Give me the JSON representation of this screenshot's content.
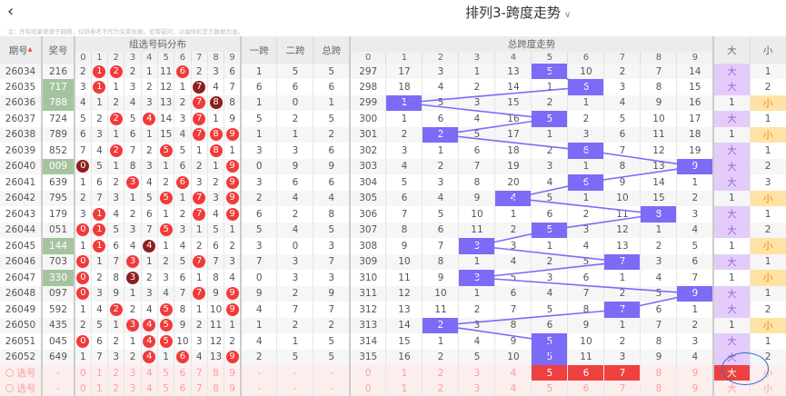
{
  "header": {
    "back_icon": "chevron-left-icon",
    "title": "排列3-跨度走势",
    "dropdown_icon": "chevron-down-icon"
  },
  "note": "注：开奖结果来源于网络，仅供参考不作为兑奖依据。如有疑问，以福体彩官方数据为准。",
  "columns": {
    "issue": "期号",
    "sort_icon": "sort-icon",
    "number": "奖号",
    "distribution": "组选号码分布",
    "span1": "一跨",
    "span2": "二跨",
    "span_total": "总跨",
    "trend": "总跨度走势",
    "digits": [
      "0",
      "1",
      "2",
      "3",
      "4",
      "5",
      "6",
      "7",
      "8",
      "9"
    ],
    "big": "大",
    "small": "小"
  },
  "colors": {
    "hit": "#f23a3a",
    "hit_repeat": "#8e1f1f",
    "span_marker": "#7b6bf7",
    "pair_number": "#a6c3a0",
    "big": "#e3ccf9",
    "small": "#ffe3a6",
    "selected": "#ef4040"
  },
  "rows": [
    {
      "issue": "26034",
      "number": "216",
      "pair": false,
      "dist": [
        2,
        1,
        2,
        2,
        1,
        11,
        6,
        2,
        3,
        6
      ],
      "s1": 1,
      "s2": 5,
      "st": 5,
      "trend": [
        297,
        17,
        3,
        1,
        13,
        5,
        10,
        2,
        7,
        14
      ],
      "big": "大",
      "small": "1"
    },
    {
      "issue": "26035",
      "number": "717",
      "pair": true,
      "dist": [
        3,
        1,
        1,
        3,
        2,
        12,
        1,
        7,
        4,
        7
      ],
      "s1": 6,
      "s2": 6,
      "st": 6,
      "trend": [
        298,
        18,
        4,
        2,
        14,
        1,
        6,
        3,
        8,
        15
      ],
      "big": "大",
      "small": "2"
    },
    {
      "issue": "26036",
      "number": "788",
      "pair": true,
      "dist": [
        4,
        1,
        2,
        4,
        3,
        13,
        2,
        7,
        8,
        8
      ],
      "s1": 1,
      "s2": 0,
      "st": 1,
      "trend": [
        299,
        1,
        5,
        3,
        15,
        2,
        1,
        4,
        9,
        16
      ],
      "big": "1",
      "small": "小"
    },
    {
      "issue": "26037",
      "number": "724",
      "pair": false,
      "dist": [
        5,
        2,
        2,
        5,
        4,
        14,
        3,
        7,
        1,
        9
      ],
      "s1": 5,
      "s2": 2,
      "st": 5,
      "trend": [
        300,
        1,
        6,
        4,
        16,
        5,
        2,
        5,
        10,
        17
      ],
      "big": "大",
      "small": "1"
    },
    {
      "issue": "26038",
      "number": "789",
      "pair": false,
      "dist": [
        6,
        3,
        1,
        6,
        1,
        15,
        4,
        7,
        8,
        9
      ],
      "s1": 1,
      "s2": 1,
      "st": 2,
      "trend": [
        301,
        2,
        2,
        5,
        17,
        1,
        3,
        6,
        11,
        18
      ],
      "big": "1",
      "small": "小"
    },
    {
      "issue": "26039",
      "number": "852",
      "pair": false,
      "dist": [
        7,
        4,
        2,
        7,
        2,
        5,
        5,
        1,
        8,
        1
      ],
      "s1": 3,
      "s2": 3,
      "st": 6,
      "trend": [
        302,
        3,
        1,
        6,
        18,
        2,
        6,
        7,
        12,
        19
      ],
      "big": "大",
      "small": "1"
    },
    {
      "issue": "26040",
      "number": "009",
      "pair": true,
      "dist": [
        0,
        5,
        1,
        8,
        3,
        1,
        6,
        2,
        1,
        9
      ],
      "s1": 0,
      "s2": 9,
      "st": 9,
      "trend": [
        303,
        4,
        2,
        7,
        19,
        3,
        1,
        8,
        13,
        9
      ],
      "big": "大",
      "small": "2"
    },
    {
      "issue": "26041",
      "number": "639",
      "pair": false,
      "dist": [
        1,
        6,
        2,
        3,
        4,
        2,
        6,
        3,
        2,
        9
      ],
      "s1": 3,
      "s2": 6,
      "st": 6,
      "trend": [
        304,
        5,
        3,
        8,
        20,
        4,
        6,
        9,
        14,
        1
      ],
      "big": "大",
      "small": "3"
    },
    {
      "issue": "26042",
      "number": "795",
      "pair": false,
      "dist": [
        2,
        7,
        3,
        1,
        5,
        5,
        1,
        7,
        3,
        9
      ],
      "s1": 2,
      "s2": 4,
      "st": 4,
      "trend": [
        305,
        6,
        4,
        9,
        4,
        5,
        1,
        10,
        15,
        2
      ],
      "big": "1",
      "small": "小"
    },
    {
      "issue": "26043",
      "number": "179",
      "pair": false,
      "dist": [
        3,
        1,
        4,
        2,
        6,
        1,
        2,
        7,
        4,
        9
      ],
      "s1": 6,
      "s2": 2,
      "st": 8,
      "trend": [
        306,
        7,
        5,
        10,
        1,
        6,
        2,
        11,
        8,
        3
      ],
      "big": "大",
      "small": "1"
    },
    {
      "issue": "26044",
      "number": "051",
      "pair": false,
      "dist": [
        0,
        1,
        5,
        3,
        7,
        5,
        3,
        1,
        5,
        1
      ],
      "s1": 5,
      "s2": 4,
      "st": 5,
      "trend": [
        307,
        8,
        6,
        11,
        2,
        5,
        3,
        12,
        1,
        4
      ],
      "big": "大",
      "small": "2"
    },
    {
      "issue": "26045",
      "number": "144",
      "pair": true,
      "dist": [
        1,
        1,
        6,
        4,
        4,
        1,
        4,
        2,
        6,
        2
      ],
      "s1": 3,
      "s2": 0,
      "st": 3,
      "trend": [
        308,
        9,
        7,
        3,
        3,
        1,
        4,
        13,
        2,
        5
      ],
      "big": "1",
      "small": "小"
    },
    {
      "issue": "26046",
      "number": "703",
      "pair": false,
      "dist": [
        0,
        1,
        7,
        3,
        1,
        2,
        5,
        7,
        7,
        3
      ],
      "s1": 7,
      "s2": 3,
      "st": 7,
      "trend": [
        309,
        10,
        8,
        1,
        4,
        2,
        5,
        7,
        3,
        6
      ],
      "big": "大",
      "small": "1"
    },
    {
      "issue": "26047",
      "number": "330",
      "pair": true,
      "dist": [
        0,
        2,
        8,
        3,
        2,
        3,
        6,
        1,
        8,
        4
      ],
      "s1": 0,
      "s2": 3,
      "st": 3,
      "trend": [
        310,
        11,
        9,
        3,
        5,
        3,
        6,
        1,
        4,
        7
      ],
      "big": "1",
      "small": "小"
    },
    {
      "issue": "26048",
      "number": "097",
      "pair": false,
      "dist": [
        0,
        3,
        9,
        1,
        3,
        4,
        7,
        7,
        9,
        9
      ],
      "s1": 9,
      "s2": 2,
      "st": 9,
      "trend": [
        311,
        12,
        10,
        1,
        6,
        4,
        7,
        2,
        5,
        9
      ],
      "big": "大",
      "small": "1"
    },
    {
      "issue": "26049",
      "number": "592",
      "pair": false,
      "dist": [
        1,
        4,
        2,
        2,
        4,
        5,
        8,
        1,
        10,
        9
      ],
      "s1": 4,
      "s2": 7,
      "st": 7,
      "trend": [
        312,
        13,
        11,
        2,
        7,
        5,
        8,
        7,
        6,
        1
      ],
      "big": "大",
      "small": "2"
    },
    {
      "issue": "26050",
      "number": "435",
      "pair": false,
      "dist": [
        2,
        5,
        1,
        3,
        4,
        5,
        9,
        2,
        11,
        1
      ],
      "s1": 1,
      "s2": 2,
      "st": 2,
      "trend": [
        313,
        14,
        2,
        3,
        8,
        6,
        9,
        1,
        7,
        2
      ],
      "big": "1",
      "small": "小"
    },
    {
      "issue": "26051",
      "number": "045",
      "pair": false,
      "dist": [
        0,
        6,
        2,
        1,
        4,
        5,
        10,
        3,
        12,
        2
      ],
      "s1": 4,
      "s2": 1,
      "st": 5,
      "trend": [
        314,
        15,
        1,
        4,
        9,
        5,
        10,
        2,
        8,
        3
      ],
      "big": "大",
      "small": "1"
    },
    {
      "issue": "26052",
      "number": "649",
      "pair": false,
      "dist": [
        1,
        7,
        3,
        2,
        4,
        1,
        6,
        4,
        13,
        9
      ],
      "s1": 2,
      "s2": 5,
      "st": 5,
      "trend": [
        315,
        16,
        2,
        5,
        10,
        5,
        11,
        3,
        9,
        4
      ],
      "big": "大",
      "small": "2"
    }
  ],
  "select_rows": [
    {
      "label": "选号",
      "number": "-",
      "spans": [
        "-",
        "-",
        "-"
      ],
      "selected_trend": [
        5,
        6,
        7
      ],
      "selected_big": true,
      "selected_small": false
    },
    {
      "label": "选号",
      "number": "-",
      "spans": [
        "-",
        "-",
        "-"
      ],
      "selected_trend": [],
      "selected_big": false,
      "selected_small": false
    }
  ]
}
